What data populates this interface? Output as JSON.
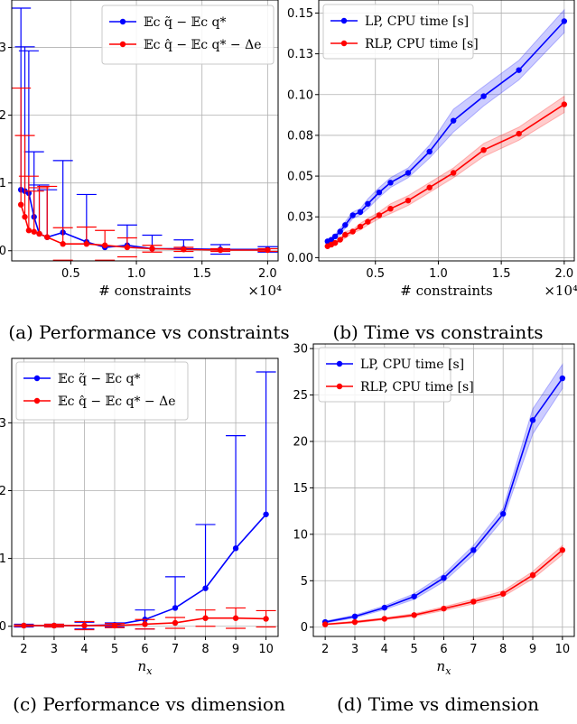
{
  "chart_data": [
    {
      "id": "a",
      "type": "line",
      "caption": "(a) Performance vs constraints",
      "xlabel": "# constraints",
      "offset_label": "×10⁴",
      "xlim": [
        0.05,
        2.08
      ],
      "ylim": [
        -0.15,
        3.7
      ],
      "xticks": [
        0.5,
        1.0,
        1.5,
        2.0
      ],
      "xtick_labels": [
        "0.5",
        "1.0",
        "1.5",
        "2.0"
      ],
      "yticks": [
        0,
        1,
        2,
        3
      ],
      "ytick_labels": [
        "0",
        "1",
        "2",
        "3"
      ],
      "xgrid": [
        0.5,
        1.0,
        1.5,
        2.0
      ],
      "ygrid": [
        0,
        1,
        2,
        3
      ],
      "legend": "top-right",
      "series": [
        {
          "name": "𝔼c q̃ − 𝔼c q*",
          "color": "#0000ff",
          "x": [
            0.12,
            0.15,
            0.18,
            0.22,
            0.26,
            0.32,
            0.44,
            0.62,
            0.76,
            0.93,
            1.12,
            1.36,
            1.64,
            2.0
          ],
          "y": [
            0.9,
            0.88,
            0.85,
            0.5,
            0.25,
            0.2,
            0.27,
            0.13,
            0.05,
            0.08,
            0.03,
            0.03,
            0.02,
            0.02
          ],
          "err": [
            2.68,
            2.13,
            2.1,
            0.96,
            0.72,
            0.7,
            1.06,
            0.7,
            0.0,
            0.3,
            0.2,
            0.13,
            0.07,
            0.04
          ]
        },
        {
          "name": "𝔼c q̂ − 𝔼c q* − Δe",
          "color": "#ff0000",
          "x": [
            0.12,
            0.15,
            0.18,
            0.22,
            0.26,
            0.32,
            0.44,
            0.62,
            0.76,
            0.93,
            1.12,
            1.36,
            1.64,
            2.0
          ],
          "y": [
            0.68,
            0.5,
            0.3,
            0.28,
            0.25,
            0.2,
            0.1,
            0.1,
            0.08,
            0.05,
            0.03,
            0.02,
            0.01,
            0.01
          ],
          "err": [
            1.72,
            1.2,
            0.8,
            0.6,
            0.68,
            0.75,
            0.24,
            0.25,
            0.22,
            0.14,
            0.05,
            0.03,
            0.02,
            0.02
          ]
        }
      ]
    },
    {
      "id": "b",
      "type": "line",
      "caption": "(b) Time vs constraints",
      "xlabel": "# constraints",
      "offset_label": "×10⁴",
      "xlim": [
        0.05,
        2.08
      ],
      "ylim": [
        -0.002,
        0.158
      ],
      "xticks": [
        0.5,
        1.0,
        1.5,
        2.0
      ],
      "xtick_labels": [
        "0.5",
        "1.0",
        "1.5",
        "2.0"
      ],
      "yticks": [
        0.0,
        0.025,
        0.05,
        0.075,
        0.1,
        0.125,
        0.15
      ],
      "ytick_labels": [
        "0.00",
        "0.03",
        "0.05",
        "0.08",
        "0.10",
        "0.13",
        "0.15"
      ],
      "xgrid": [
        0.5,
        1.0,
        1.5,
        2.0
      ],
      "ygrid": [
        0.0,
        0.025,
        0.05,
        0.075,
        0.1,
        0.125,
        0.15
      ],
      "legend": "top-left",
      "series": [
        {
          "name": "LP, CPU time [s]",
          "color": "#0000ff",
          "band": true,
          "x": [
            0.12,
            0.15,
            0.18,
            0.22,
            0.26,
            0.32,
            0.38,
            0.44,
            0.53,
            0.62,
            0.76,
            0.93,
            1.12,
            1.36,
            1.64,
            2.0
          ],
          "y": [
            0.01,
            0.011,
            0.013,
            0.016,
            0.02,
            0.026,
            0.028,
            0.033,
            0.04,
            0.046,
            0.052,
            0.065,
            0.084,
            0.099,
            0.115,
            0.145
          ],
          "lo": [
            0.009,
            0.01,
            0.012,
            0.014,
            0.018,
            0.024,
            0.026,
            0.03,
            0.037,
            0.043,
            0.049,
            0.061,
            0.077,
            0.093,
            0.109,
            0.138
          ],
          "hi": [
            0.011,
            0.012,
            0.014,
            0.018,
            0.022,
            0.028,
            0.03,
            0.036,
            0.043,
            0.049,
            0.055,
            0.069,
            0.091,
            0.105,
            0.121,
            0.152
          ]
        },
        {
          "name": "RLP, CPU time [s]",
          "color": "#ff0000",
          "band": true,
          "x": [
            0.12,
            0.15,
            0.18,
            0.22,
            0.26,
            0.32,
            0.38,
            0.44,
            0.53,
            0.62,
            0.76,
            0.93,
            1.12,
            1.36,
            1.64,
            2.0
          ],
          "y": [
            0.007,
            0.008,
            0.009,
            0.011,
            0.014,
            0.016,
            0.019,
            0.022,
            0.026,
            0.03,
            0.035,
            0.043,
            0.052,
            0.066,
            0.076,
            0.094
          ],
          "lo": [
            0.006,
            0.007,
            0.008,
            0.01,
            0.012,
            0.015,
            0.017,
            0.02,
            0.024,
            0.027,
            0.032,
            0.04,
            0.049,
            0.062,
            0.072,
            0.089
          ],
          "hi": [
            0.008,
            0.009,
            0.01,
            0.012,
            0.016,
            0.017,
            0.021,
            0.024,
            0.028,
            0.033,
            0.038,
            0.046,
            0.055,
            0.07,
            0.08,
            0.099
          ]
        }
      ]
    },
    {
      "id": "c",
      "type": "line",
      "caption": "(c) Performance vs dimension",
      "xlabel": "n_x",
      "offset_label": "",
      "xlim": [
        1.6,
        10.4
      ],
      "ylim": [
        -0.15,
        3.95
      ],
      "xticks": [
        2,
        3,
        4,
        5,
        6,
        7,
        8,
        9,
        10
      ],
      "xtick_labels": [
        "2",
        "3",
        "4",
        "5",
        "6",
        "7",
        "8",
        "9",
        "10"
      ],
      "yticks": [
        0,
        1,
        2,
        3
      ],
      "ytick_labels": [
        "0",
        "1",
        "2",
        "3"
      ],
      "xgrid": [
        2,
        3,
        4,
        5,
        6,
        7,
        8,
        9,
        10
      ],
      "ygrid": [
        0,
        1,
        2,
        3
      ],
      "legend": "top-left",
      "series": [
        {
          "name": "𝔼c q̃ − 𝔼c q*",
          "color": "#0000ff",
          "x": [
            2,
            3,
            4,
            5,
            6,
            7,
            8,
            9,
            10
          ],
          "y": [
            0.01,
            0.01,
            0.01,
            0.02,
            0.1,
            0.27,
            0.56,
            1.15,
            1.65
          ],
          "err": [
            0.02,
            0.02,
            0.05,
            0.03,
            0.14,
            0.46,
            0.94,
            1.66,
            2.1
          ]
        },
        {
          "name": "𝔼c q̂ − 𝔼c q* − Δe",
          "color": "#ff0000",
          "x": [
            2,
            3,
            4,
            5,
            6,
            7,
            8,
            9,
            10
          ],
          "y": [
            0.01,
            0.01,
            0.01,
            0.01,
            0.03,
            0.05,
            0.12,
            0.12,
            0.11
          ],
          "err": [
            0.01,
            0.02,
            0.06,
            0.03,
            0.07,
            0.08,
            0.12,
            0.15,
            0.12
          ]
        }
      ]
    },
    {
      "id": "d",
      "type": "line",
      "caption": "(d) Time vs dimension",
      "xlabel": "n_x",
      "offset_label": "",
      "xlim": [
        1.6,
        10.4
      ],
      "ylim": [
        -1,
        30.5
      ],
      "xticks": [
        2,
        3,
        4,
        5,
        6,
        7,
        8,
        9,
        10
      ],
      "xtick_labels": [
        "2",
        "3",
        "4",
        "5",
        "6",
        "7",
        "8",
        "9",
        "10"
      ],
      "yticks": [
        0,
        5,
        10,
        15,
        20,
        25,
        30
      ],
      "ytick_labels": [
        "0",
        "5",
        "10",
        "15",
        "20",
        "25",
        "30"
      ],
      "xgrid": [
        2,
        3,
        4,
        5,
        6,
        7,
        8,
        9,
        10
      ],
      "ygrid": [
        0,
        5,
        10,
        15,
        20,
        25,
        30
      ],
      "legend": "top-left",
      "series": [
        {
          "name": "LP, CPU time [s]",
          "color": "#0000ff",
          "band": true,
          "x": [
            2,
            3,
            4,
            5,
            6,
            7,
            8,
            9,
            10
          ],
          "y": [
            0.55,
            1.15,
            2.1,
            3.3,
            5.3,
            8.3,
            12.2,
            22.3,
            26.8
          ],
          "lo": [
            0.45,
            1.0,
            1.9,
            3.0,
            4.9,
            7.8,
            11.6,
            20.8,
            25.7
          ],
          "hi": [
            0.65,
            1.3,
            2.3,
            3.6,
            5.7,
            8.8,
            12.8,
            23.5,
            28.3
          ]
        },
        {
          "name": "RLP, CPU time [s]",
          "color": "#ff0000",
          "band": true,
          "x": [
            2,
            3,
            4,
            5,
            6,
            7,
            8,
            9,
            10
          ],
          "y": [
            0.3,
            0.55,
            0.9,
            1.3,
            2.0,
            2.75,
            3.6,
            5.6,
            8.3
          ],
          "lo": [
            0.25,
            0.45,
            0.8,
            1.15,
            1.8,
            2.5,
            3.3,
            5.2,
            7.8
          ],
          "hi": [
            0.35,
            0.65,
            1.0,
            1.45,
            2.2,
            3.0,
            3.9,
            6.0,
            8.8
          ]
        }
      ]
    }
  ]
}
